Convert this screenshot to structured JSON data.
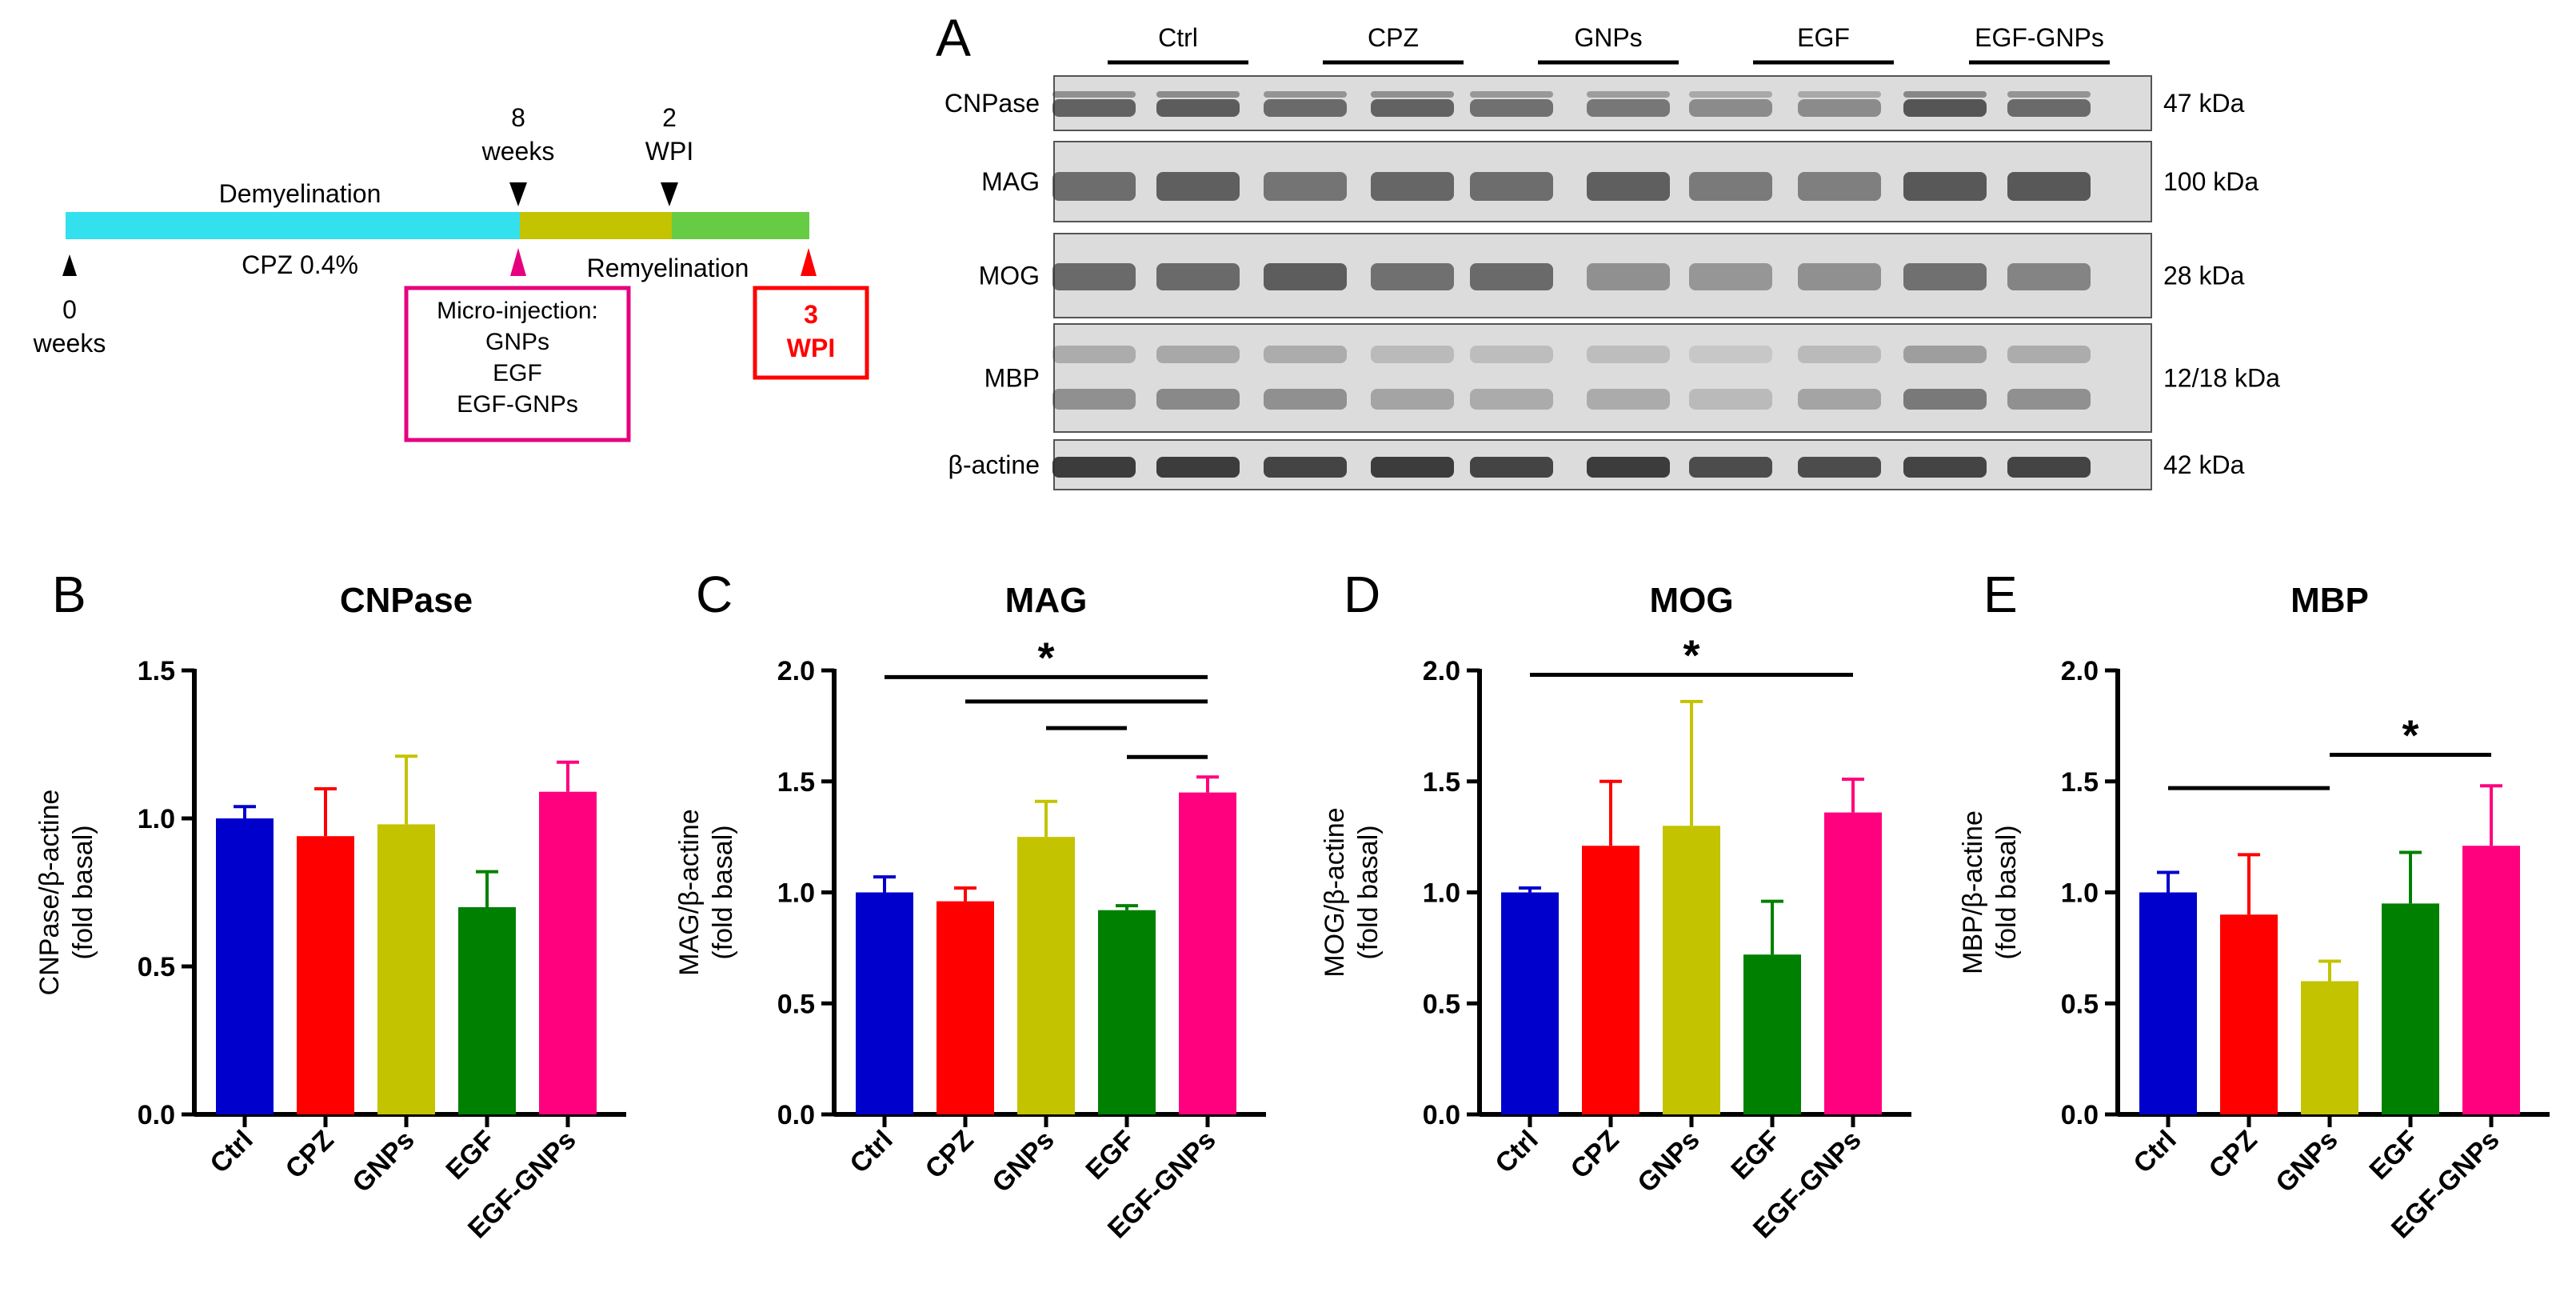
{
  "colors": {
    "Ctrl": "#0000cc",
    "CPZ": "#ff0000",
    "GNPs": "#c3c300",
    "EGF": "#008000",
    "EGF-GNPs": "#ff007f",
    "cyan_phase": "#33e0ee",
    "olive_phase": "#c3c300",
    "green_phase": "#66cc44",
    "magenta_accent": "#e6007e",
    "red_accent": "#ff0000"
  },
  "timeline": {
    "demyelination": "Demyelination",
    "cpz": "CPZ 0.4%",
    "remyelination": "Remyelination",
    "start_line1": "0",
    "start_line2": "weeks",
    "mid_line1": "8",
    "mid_line2": "weeks",
    "wpi2_line1": "2",
    "wpi2_line2": "WPI",
    "injection": [
      "Micro-injection:",
      "GNPs",
      "EGF",
      "EGF-GNPs"
    ],
    "wpi3_line1": "3",
    "wpi3_line2": "WPI"
  },
  "blot": {
    "panel_letter": "A",
    "groups": [
      "Ctrl",
      "CPZ",
      "GNPs",
      "EGF",
      "EGF-GNPs"
    ],
    "proteins": [
      {
        "name": "CNPase",
        "kda": "47 kDa"
      },
      {
        "name": "MAG",
        "kda": "100 kDa"
      },
      {
        "name": "MOG",
        "kda": "28 kDa"
      },
      {
        "name": "MBP",
        "kda": "12/18 kDa"
      },
      {
        "name": "β-actine",
        "kda": "42 kDa"
      }
    ]
  },
  "chart_data": [
    {
      "panel": "B",
      "type": "bar",
      "title": "CNPase",
      "ylabel": "CNPase/β-actine\n(fold basal)",
      "categories": [
        "Ctrl",
        "CPZ",
        "GNPs",
        "EGF",
        "EGF-GNPs"
      ],
      "values": [
        1.0,
        0.94,
        0.98,
        0.7,
        1.09
      ],
      "errors": [
        0.04,
        0.16,
        0.23,
        0.12,
        0.1
      ],
      "ylim": [
        0,
        1.5
      ],
      "yticks": [
        "0.0",
        "0.5",
        "1.0",
        "1.5"
      ],
      "significance": []
    },
    {
      "panel": "C",
      "type": "bar",
      "title": "MAG",
      "ylabel": "MAG/β-actine\n(fold basal)",
      "categories": [
        "Ctrl",
        "CPZ",
        "GNPs",
        "EGF",
        "EGF-GNPs"
      ],
      "values": [
        1.0,
        0.96,
        1.25,
        0.92,
        1.45
      ],
      "errors": [
        0.07,
        0.06,
        0.16,
        0.02,
        0.07
      ],
      "ylim": [
        0,
        2.0
      ],
      "yticks": [
        "0.0",
        "0.5",
        "1.0",
        "1.5",
        "2.0"
      ],
      "significance": [
        {
          "from": 0,
          "to": 4,
          "y": 1.97,
          "star": "*"
        },
        {
          "from": 1,
          "to": 4,
          "y": 1.86
        },
        {
          "from": 2,
          "to": 3,
          "y": 1.74
        },
        {
          "from": 3,
          "to": 4,
          "y": 1.61
        }
      ]
    },
    {
      "panel": "D",
      "type": "bar",
      "title": "MOG",
      "ylabel": "MOG/β-actine\n(fold basal)",
      "categories": [
        "Ctrl",
        "CPZ",
        "GNPs",
        "EGF",
        "EGF-GNPs"
      ],
      "values": [
        1.0,
        1.21,
        1.3,
        0.72,
        1.36
      ],
      "errors": [
        0.02,
        0.29,
        0.56,
        0.24,
        0.15
      ],
      "ylim": [
        0,
        2.0
      ],
      "yticks": [
        "0.0",
        "0.5",
        "1.0",
        "1.5",
        "2.0"
      ],
      "significance": [
        {
          "from": 0,
          "to": 4,
          "y": 1.98,
          "star": "*"
        }
      ]
    },
    {
      "panel": "E",
      "type": "bar",
      "title": "MBP",
      "ylabel": "MBP/β-actine\n(fold basal)",
      "categories": [
        "Ctrl",
        "CPZ",
        "GNPs",
        "EGF",
        "EGF-GNPs"
      ],
      "values": [
        1.0,
        0.9,
        0.6,
        0.95,
        1.21
      ],
      "errors": [
        0.09,
        0.27,
        0.09,
        0.23,
        0.27
      ],
      "ylim": [
        0,
        2.0
      ],
      "yticks": [
        "0.0",
        "0.5",
        "1.0",
        "1.5",
        "2.0"
      ],
      "significance": [
        {
          "from": 0,
          "to": 2,
          "y": 1.47
        },
        {
          "from": 2,
          "to": 4,
          "y": 1.62,
          "star": "*"
        }
      ]
    }
  ]
}
